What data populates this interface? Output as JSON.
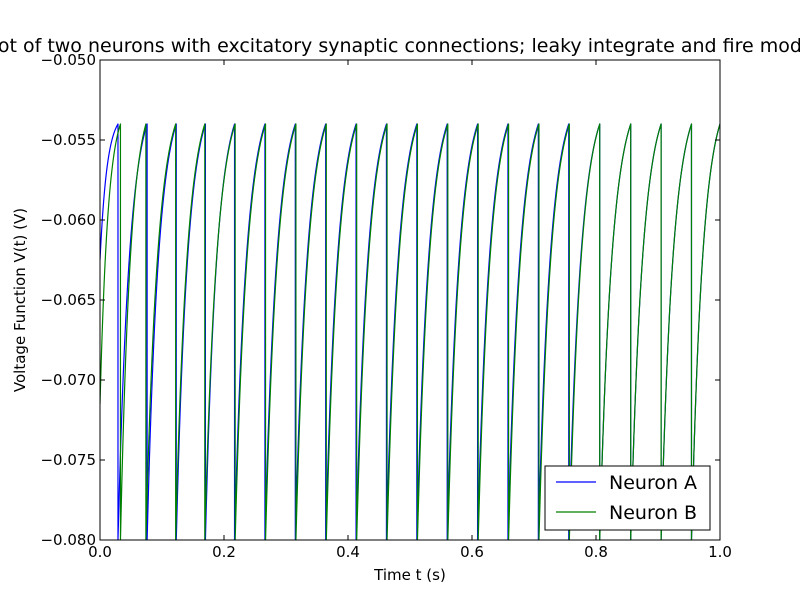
{
  "chart_data": {
    "type": "line",
    "title": "Plot of two neurons with excitatory synaptic connections; leaky integrate and fire model",
    "xlabel": "Time t (s)",
    "ylabel": "Voltage Function V(t) (V)",
    "xlim": [
      0.0,
      1.0
    ],
    "ylim": [
      -0.08,
      -0.05
    ],
    "x_ticks": [
      0.0,
      0.2,
      0.4,
      0.6,
      0.8,
      1.0
    ],
    "x_tick_labels": [
      "0.0",
      "0.2",
      "0.4",
      "0.6",
      "0.8",
      "1.0"
    ],
    "y_ticks": [
      -0.08,
      -0.075,
      -0.07,
      -0.065,
      -0.06,
      -0.055,
      -0.05
    ],
    "y_tick_labels": [
      "−0.080",
      "−0.075",
      "−0.070",
      "−0.065",
      "−0.060",
      "−0.055",
      "−0.050"
    ],
    "grid": false,
    "legend_position": "lower-right",
    "v_reset": -0.08,
    "v_threshold": -0.054,
    "series": [
      {
        "name": "Neuron A",
        "color": "#0000ff",
        "v_start": -0.0625,
        "spike_times": [
          0.029,
          0.076,
          0.123,
          0.17,
          0.217,
          0.266,
          0.315,
          0.364,
          0.413,
          0.462,
          0.511,
          0.56,
          0.609,
          0.658,
          0.707,
          0.756,
          0.806,
          0.856,
          0.905,
          0.954
        ],
        "end_value": -0.054
      },
      {
        "name": "Neuron B",
        "color": "#008000",
        "v_start": -0.0715,
        "spike_times": [
          0.033,
          0.074,
          0.122,
          0.169,
          0.218,
          0.267,
          0.316,
          0.365,
          0.414,
          0.463,
          0.512,
          0.561,
          0.61,
          0.659,
          0.708,
          0.757,
          0.806,
          0.856,
          0.905,
          0.954
        ],
        "end_value": -0.054
      }
    ]
  }
}
